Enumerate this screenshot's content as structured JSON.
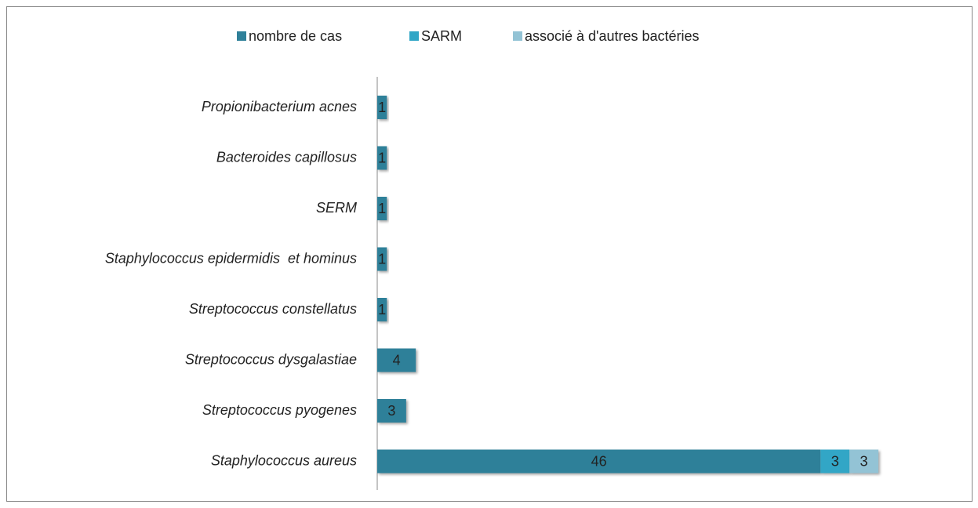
{
  "chart_data": {
    "type": "stacked-bar-horizontal",
    "categories": [
      "Propionibacterium acnes",
      "Bacteroides capillosus",
      "SERM",
      "Staphylococcus epidermidis  et hominus",
      "Streptococcus constellatus",
      "Streptococcus dysgalastiae",
      "Streptococcus pyogenes",
      "Staphylococcus aureus"
    ],
    "series": [
      {
        "name": "nombre de cas",
        "color": "#2f8099",
        "values": [
          1,
          1,
          1,
          1,
          1,
          4,
          3,
          46
        ]
      },
      {
        "name": "SARM",
        "color": "#30a6c6",
        "values": [
          null,
          null,
          null,
          null,
          null,
          null,
          null,
          3
        ]
      },
      {
        "name": "associé à d'autres bactéries",
        "color": "#93c3d5",
        "values": [
          null,
          null,
          null,
          null,
          null,
          null,
          null,
          3
        ]
      }
    ],
    "legend": "top"
  }
}
